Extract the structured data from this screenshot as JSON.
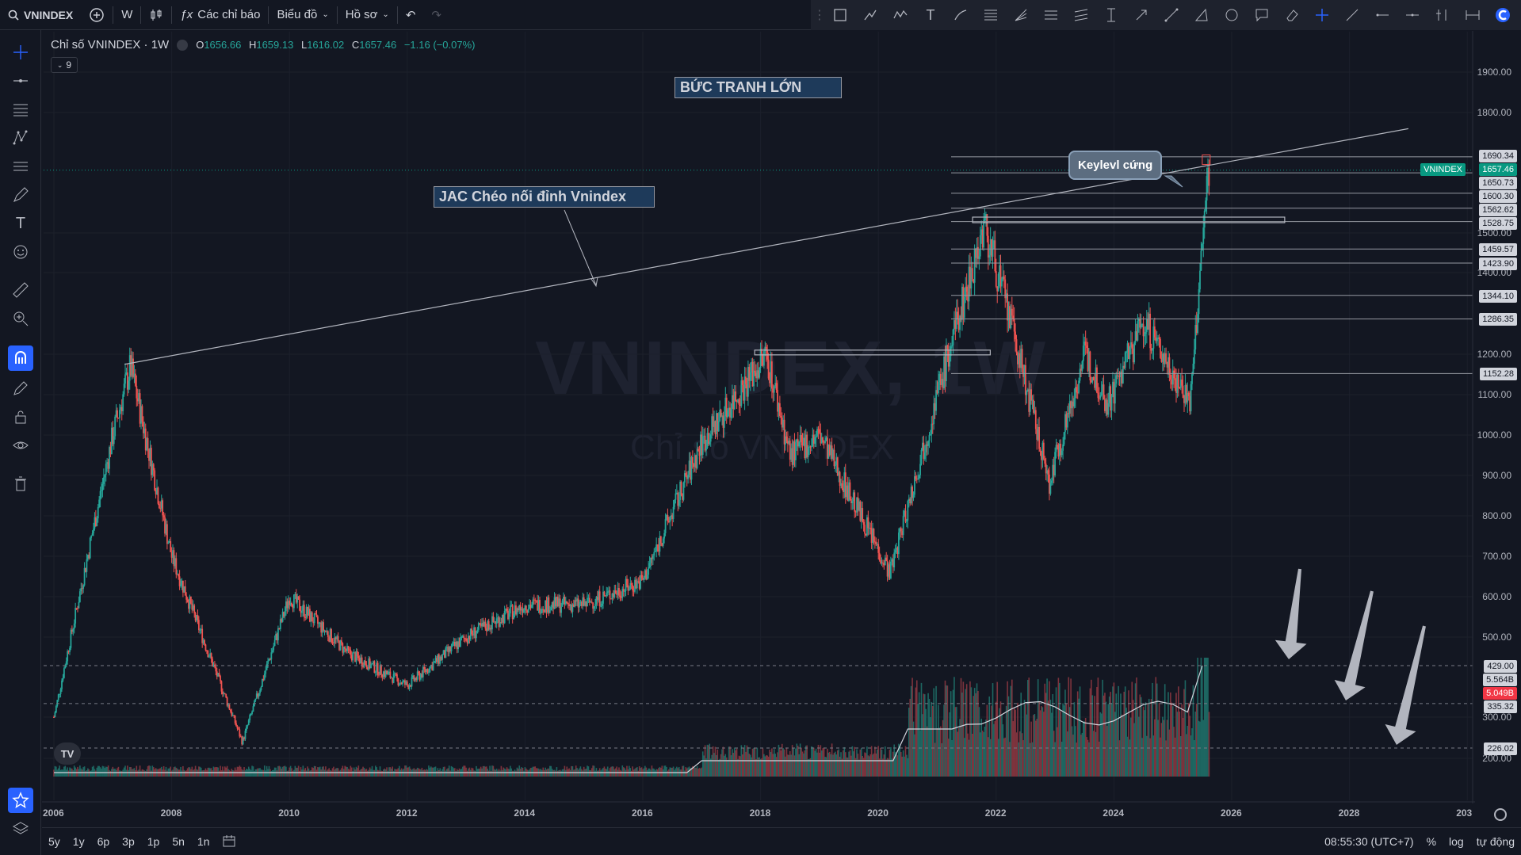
{
  "toolbar": {
    "symbol": "VNINDEX",
    "interval": "W",
    "indicators_label": "Các chỉ báo",
    "chart_label": "Biểu đồ",
    "profile_label": "Hồ sơ"
  },
  "legend": {
    "title": "Chỉ số VNINDEX · 1W",
    "o_label": "O",
    "o_val": "1656.66",
    "h_label": "H",
    "h_val": "1659.13",
    "l_label": "L",
    "l_val": "1616.02",
    "c_label": "C",
    "c_val": "1657.46",
    "change": "−1.16 (−0.07%)",
    "collapse_count": "9"
  },
  "watermark": {
    "line1": "VNINDEX, 1W",
    "line2": "Chỉ số VNINDEX"
  },
  "annotations": {
    "big_picture": "BỨC TRANH LỚN",
    "jac_line": "JAC Chéo nối đỉnh Vnindex",
    "keylevel": "Keylevl cứng"
  },
  "price_axis": {
    "ticks": [
      "1900.00",
      "1800.00",
      "1500.00",
      "1400.00",
      "1200.00",
      "1100.00",
      "1000.00",
      "900.00",
      "800.00",
      "700.00",
      "600.00",
      "500.00",
      "300.00",
      "200.00"
    ],
    "labels": {
      "p1690": "1690.34",
      "vnindex_tag": "VNINDEX",
      "p1657": "1657.46",
      "p1650": "1650.73",
      "p1600": "1600.30",
      "p1562": "1562.62",
      "p1528": "1528.75",
      "p1459": "1459.57",
      "p1423": "1423.90",
      "p1344": "1344.10",
      "p1286": "1286.35",
      "p1152": "1152.28",
      "p429": "429.00",
      "vol1": "5.564B",
      "vol2": "5.049B",
      "p335": "335.32",
      "p226": "226.02"
    }
  },
  "time_axis": [
    "2006",
    "2008",
    "2010",
    "2012",
    "2014",
    "2016",
    "2018",
    "2020",
    "2022",
    "2024",
    "2026",
    "2028",
    "203"
  ],
  "bottom": {
    "ranges": [
      "5y",
      "1y",
      "6p",
      "3p",
      "1p",
      "5n",
      "1n"
    ],
    "clock": "08:55:30 (UTC+7)",
    "percent": "%",
    "log": "log",
    "auto": "tự động"
  },
  "colors": {
    "background": "#131722",
    "up": "#26a69a",
    "down": "#ef5350",
    "accent": "#2962ff"
  },
  "chart_data": {
    "type": "candlestick",
    "title": "Chỉ số VNINDEX · 1W",
    "x_range": [
      "2006",
      "2029"
    ],
    "y_range": [
      200,
      1950
    ],
    "key_levels": [
      1690.34,
      1650.73,
      1600.3,
      1562.62,
      1528.75,
      1459.57,
      1423.9,
      1344.1,
      1286.35,
      1152.28
    ],
    "dashed_levels": [
      429.0,
      335.32,
      226.02
    ],
    "last_close": 1657.46,
    "volume_labels": [
      "5.564B",
      "5.049B"
    ],
    "series": [
      {
        "name": "VNINDEX",
        "x": [
          "2006",
          "2007",
          "2007.3",
          "2008",
          "2009.2",
          "2010",
          "2011",
          "2012",
          "2013",
          "2014",
          "2015",
          "2016",
          "2017",
          "2018.1",
          "2018.5",
          "2019",
          "2020.2",
          "2021",
          "2021.8",
          "2022.3",
          "2022.9",
          "2023.5",
          "2023.9",
          "2024.5",
          "2025.3",
          "2025.6"
        ],
        "close": [
          300,
          1000,
          1170,
          700,
          240,
          600,
          460,
          380,
          500,
          580,
          580,
          640,
          980,
          1200,
          950,
          1000,
          660,
          1100,
          1520,
          1250,
          880,
          1200,
          1080,
          1280,
          1080,
          1657
        ]
      }
    ]
  }
}
